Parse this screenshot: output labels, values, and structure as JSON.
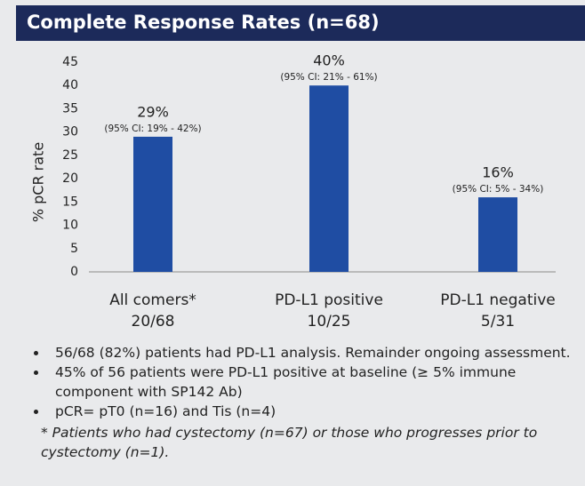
{
  "chart_data": {
    "type": "bar",
    "title": "Complete Response Rates (n=68)",
    "y_label": "% pCR rate",
    "categories": [
      "All comers*",
      "PD-L1 positive",
      "PD-L1 negative"
    ],
    "counts": [
      "20/68",
      "10/25",
      "5/31"
    ],
    "values": [
      29,
      40,
      16
    ],
    "value_labels": [
      "29%",
      "40%",
      "16%"
    ],
    "ci_labels": [
      "(95% CI: 19% - 42%)",
      "(95% CI: 21% - 61%)",
      "(95% CI: 5% - 34%)"
    ],
    "color": "#1f4da3",
    "ylim": [
      0,
      45
    ],
    "yticks": [
      0,
      5,
      10,
      15,
      20,
      25,
      30,
      35,
      40,
      45
    ],
    "grid": false
  },
  "notes": {
    "bullets": [
      "56/68 (82%) patients had PD-L1 analysis. Remainder ongoing assessment.",
      "45% of 56 patients were PD-L1 positive at baseline (≥ 5% immune component with SP142 Ab)",
      "pCR= pT0 (n=16) and Tis (n=4)"
    ],
    "footnote": "* Patients who had cystectomy (n=67) or those who progresses prior to cystectomy (n=1)."
  }
}
